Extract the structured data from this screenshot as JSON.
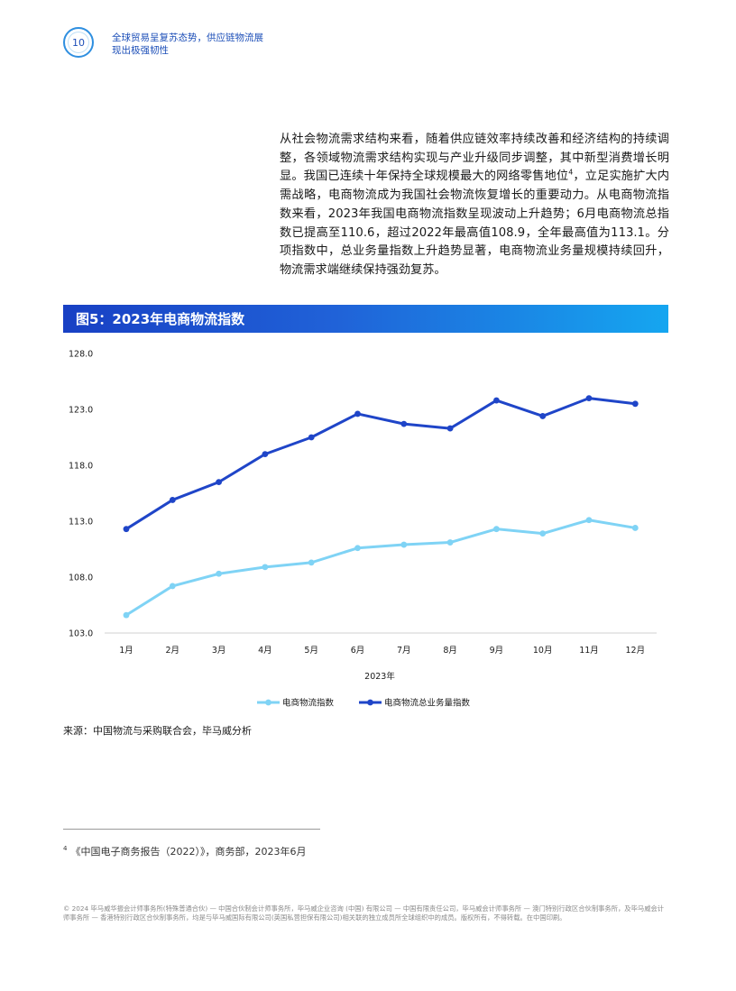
{
  "header": {
    "page_number": "10",
    "title": "全球贸易呈复苏态势，供应链物流展现出极强韧性"
  },
  "body": {
    "paragraph_before_sup": "从社会物流需求结构来看，随着供应链效率持续改善和经济结构的持续调整，各领域物流需求结构实现与产业升级同步调整，其中新型消费增长明显。我国已连续十年保持全球规模最大的网络零售地位",
    "footnote_ref": "4",
    "paragraph_after_sup": "，立足实施扩大内需战略，电商物流成为我国社会物流恢复增长的重要动力。从电商物流指数来看，2023年我国电商物流指数呈现波动上升趋势；6月电商物流总指数已提高至110.6，超过2022年最高值108.9，全年最高值为113.1。分项指数中，总业务量指数上升趋势显著，电商物流业务量规模持续回升，物流需求端继续保持强劲复苏。"
  },
  "figure": {
    "title": "图5：2023年电商物流指数"
  },
  "chart_data": {
    "type": "line",
    "categories": [
      "1月",
      "2月",
      "3月",
      "4月",
      "5月",
      "6月",
      "7月",
      "8月",
      "9月",
      "10月",
      "11月",
      "12月"
    ],
    "xlabel": "2023年",
    "ylabel": "",
    "ylim": [
      103.0,
      128.0
    ],
    "yticks": [
      "128.0",
      "123.0",
      "118.0",
      "113.0",
      "108.0",
      "103.0"
    ],
    "grid": false,
    "legend_position": "bottom-center",
    "series": [
      {
        "name": "电商物流指数",
        "color": "#7fd3f5",
        "values": [
          104.6,
          107.2,
          108.3,
          108.9,
          109.3,
          110.6,
          110.9,
          111.1,
          112.3,
          111.9,
          113.1,
          112.4
        ]
      },
      {
        "name": "电商物流总业务量指数",
        "color": "#1f45c8",
        "values": [
          112.3,
          114.9,
          116.5,
          119.0,
          120.5,
          122.6,
          121.7,
          121.3,
          123.8,
          122.4,
          124.0,
          123.5
        ]
      }
    ]
  },
  "source": "来源：中国物流与采购联合会，毕马威分析",
  "footnote": {
    "marker": "4",
    "text": "《中国电子商务报告（2022）》，商务部，2023年6月"
  },
  "legal": "© 2024 毕马威华振会计师事务所(特殊普通合伙) — 中国合伙制会计师事务所，毕马威企业咨询 (中国) 有限公司 — 中国有限责任公司，毕马威会计师事务所 — 澳门特别行政区合伙制事务所，及毕马威会计师事务所 — 香港特别行政区合伙制事务所，均是与毕马威国际有限公司(英国私营担保有限公司)相关联的独立成员所全球组织中的成员。版权所有，不得转载。在中国印刷。"
}
